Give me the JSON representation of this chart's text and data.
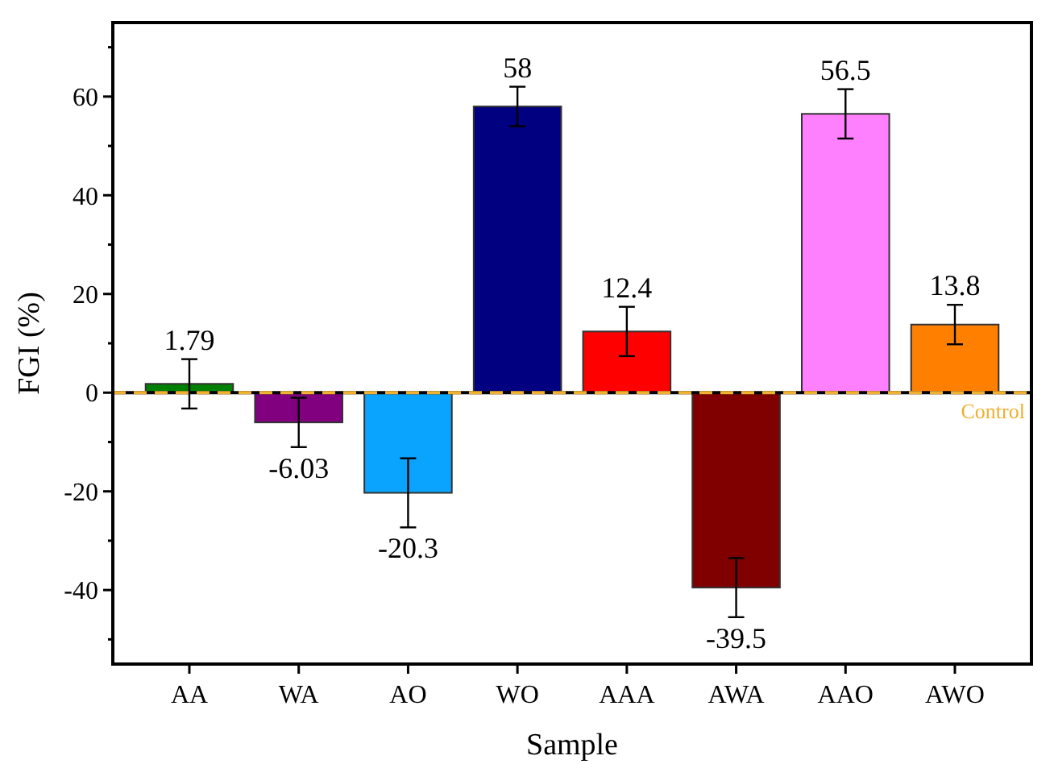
{
  "chart_data": {
    "type": "bar",
    "xlabel": "Sample",
    "ylabel": "FGI (%)",
    "categories": [
      "AA",
      "WA",
      "AO",
      "WO",
      "AAA",
      "AWA",
      "AAO",
      "AWO"
    ],
    "values": [
      1.79,
      -6.03,
      -20.3,
      58,
      12.4,
      -39.5,
      56.5,
      13.8
    ],
    "colors": [
      "#008000",
      "#800080",
      "#0aa4ff",
      "#000080",
      "#ff0000",
      "#800000",
      "#ff80ff",
      "#ff8000"
    ],
    "errors": [
      5,
      5,
      7,
      4,
      5,
      6,
      5,
      4
    ],
    "data_labels": true,
    "ylim": [
      -55,
      75
    ],
    "yticks": [
      {
        "value": -50,
        "label": null
      },
      -40,
      {
        "value": -30,
        "label": null
      },
      -20,
      {
        "value": -10,
        "label": null
      },
      0,
      {
        "value": 10,
        "label": null
      },
      20,
      {
        "value": 30,
        "label": null
      },
      40,
      {
        "value": 50,
        "label": null
      },
      60,
      {
        "value": 70,
        "label": null
      }
    ],
    "ref_lines": [
      {
        "axis": "y",
        "value": 0,
        "label": "Control",
        "color": "#f0b030",
        "line_style": "dashed"
      }
    ],
    "grid": false
  }
}
